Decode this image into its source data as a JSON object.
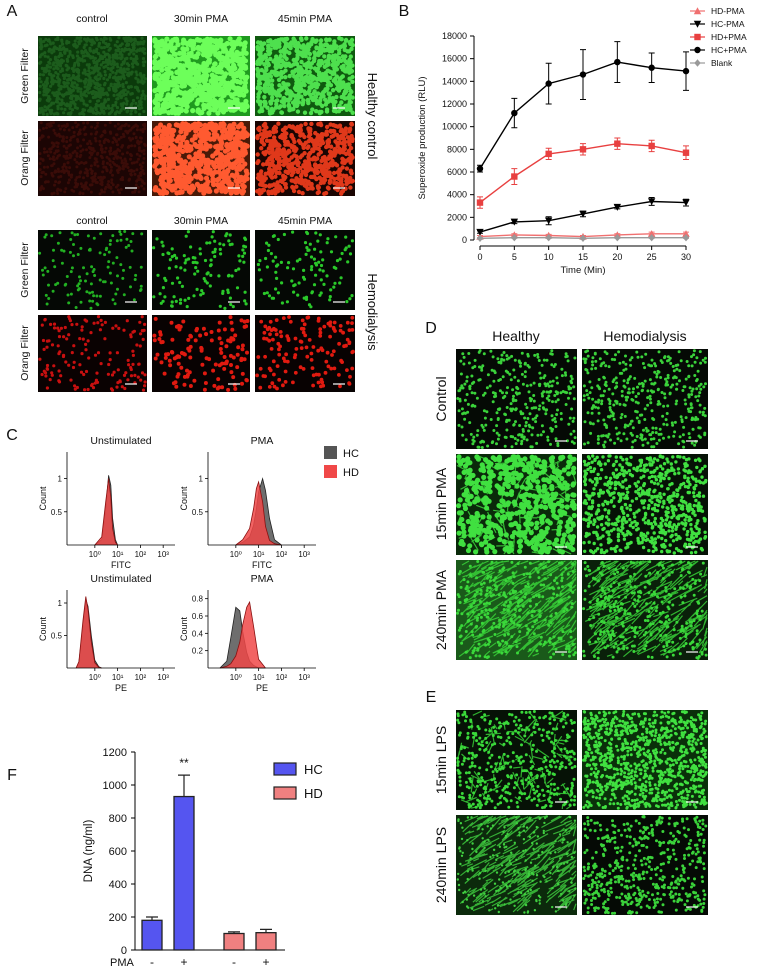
{
  "panel_A": {
    "label": "A",
    "healthy": {
      "columns": [
        "control",
        "30min PMA",
        "45min PMA"
      ],
      "rows": [
        "Green Filter",
        "Orang Filter"
      ],
      "group": "Healthy control"
    },
    "hemodialysis": {
      "columns": [
        "control",
        "30min PMA",
        "45min PMA"
      ],
      "rows": [
        "Green Filter",
        "Orang Filter"
      ],
      "group": "Hemodialysis"
    }
  },
  "panel_D": {
    "label": "D",
    "columns": [
      "Healthy",
      "Hemodialysis"
    ],
    "rows": [
      "Control",
      "15min PMA",
      "240min PMA"
    ]
  },
  "panel_E": {
    "label": "E",
    "rows": [
      "15min LPS",
      "240min LPS"
    ]
  },
  "chart_data": [
    {
      "type": "line",
      "panel": "B",
      "ylabel": "Superoxide production (RLU)",
      "xlabel": "Time (Min)",
      "x": [
        0,
        5,
        10,
        15,
        20,
        25,
        30
      ],
      "xlim": [
        0,
        30
      ],
      "xticks": [
        0,
        5,
        10,
        15,
        20,
        25,
        30
      ],
      "ylim": [
        0,
        18000
      ],
      "yticks": [
        0,
        2000,
        4000,
        6000,
        8000,
        10000,
        12000,
        14000,
        16000,
        18000
      ],
      "series": [
        {
          "name": "HD-PMA",
          "color": "#f07070",
          "marker": "triangle-up",
          "values": [
            300,
            450,
            400,
            300,
            450,
            550,
            550
          ],
          "errors": [
            100,
            100,
            100,
            100,
            100,
            150,
            150
          ]
        },
        {
          "name": "HC-PMA",
          "color": "#000000",
          "marker": "triangle-down",
          "values": [
            700,
            1600,
            1700,
            2300,
            2900,
            3400,
            3300
          ],
          "errors": [
            100,
            150,
            350,
            250,
            150,
            350,
            300
          ]
        },
        {
          "name": "HD+PMA",
          "color": "#e84040",
          "marker": "square",
          "values": [
            3300,
            5600,
            7600,
            8000,
            8500,
            8300,
            7700
          ],
          "errors": [
            500,
            700,
            500,
            500,
            500,
            500,
            600
          ]
        },
        {
          "name": "HC+PMA",
          "color": "#000000",
          "marker": "circle",
          "values": [
            6300,
            11200,
            13800,
            14600,
            15700,
            15200,
            14900
          ],
          "errors": [
            300,
            1300,
            1800,
            2200,
            1800,
            1300,
            1700
          ]
        },
        {
          "name": "Blank",
          "color": "#999999",
          "marker": "diamond",
          "values": [
            150,
            200,
            200,
            150,
            200,
            200,
            200
          ],
          "errors": [
            50,
            50,
            50,
            50,
            50,
            50,
            50
          ]
        }
      ]
    },
    {
      "type": "density",
      "panel": "C",
      "ylabel": "Count",
      "xscale": "log",
      "xlim": [
        0.06,
        3300
      ],
      "xticks": [
        {
          "value": 1,
          "label": "10⁰"
        },
        {
          "value": 10,
          "label": "10¹"
        },
        {
          "value": 100,
          "label": "10²"
        },
        {
          "value": 1000,
          "label": "10³"
        }
      ],
      "series": [
        {
          "name": "HC",
          "color": "#555555"
        },
        {
          "name": "HD",
          "color": "#f04848"
        }
      ],
      "plots": [
        {
          "title": "Unstimulated",
          "xlabel": "FITC",
          "ylim": [
            0,
            1.4
          ],
          "yticks": [
            0.5,
            1
          ],
          "x": [
            1,
            2,
            3,
            4,
            5,
            6,
            8,
            10
          ],
          "values": [
            [
              0,
              0.08,
              0.55,
              1.05,
              0.9,
              0.4,
              0.08,
              0
            ],
            [
              0,
              0.12,
              0.65,
              1.0,
              0.72,
              0.25,
              0.04,
              0
            ]
          ]
        },
        {
          "title": "PMA",
          "xlabel": "FITC",
          "ylim": [
            0,
            1.4
          ],
          "yticks": [
            0.5,
            1
          ],
          "x": [
            1,
            2,
            4,
            6,
            8,
            10,
            15,
            20,
            30,
            50,
            100
          ],
          "values": [
            [
              0,
              0.04,
              0.12,
              0.3,
              0.55,
              0.8,
              1.0,
              0.82,
              0.4,
              0.08,
              0
            ],
            [
              0,
              0.08,
              0.25,
              0.55,
              0.85,
              0.95,
              0.65,
              0.28,
              0.07,
              0.02,
              0
            ]
          ]
        },
        {
          "title": "Unstimulated",
          "xlabel": "PE",
          "ylim": [
            0,
            1.2
          ],
          "yticks": [
            0.5,
            1
          ],
          "x": [
            0.15,
            0.2,
            0.3,
            0.4,
            0.5,
            0.7,
            1,
            1.5,
            2
          ],
          "values": [
            [
              0,
              0.08,
              0.65,
              1.05,
              0.95,
              0.5,
              0.12,
              0.02,
              0
            ],
            [
              0,
              0.1,
              0.72,
              1.1,
              0.9,
              0.4,
              0.08,
              0.01,
              0
            ]
          ]
        },
        {
          "title": "PMA",
          "xlabel": "PE",
          "ylim": [
            0,
            0.9
          ],
          "yticks": [
            0.2,
            0.4,
            0.6,
            0.8
          ],
          "x": [
            0.2,
            0.4,
            0.6,
            1,
            1.5,
            2,
            3,
            4,
            6,
            10,
            20
          ],
          "values": [
            [
              0,
              0.08,
              0.35,
              0.7,
              0.66,
              0.42,
              0.18,
              0.08,
              0.03,
              0,
              0
            ],
            [
              0,
              0.02,
              0.05,
              0.14,
              0.3,
              0.5,
              0.7,
              0.76,
              0.48,
              0.1,
              0
            ]
          ]
        }
      ]
    },
    {
      "type": "bar",
      "panel": "F",
      "ylabel": "DNA (ng/ml)",
      "xlabel": "PMA",
      "categories": [
        "-",
        "+",
        "-",
        "+"
      ],
      "ylim": [
        0,
        1200
      ],
      "yticks": [
        0,
        200,
        400,
        600,
        800,
        1000,
        1200
      ],
      "series": [
        {
          "name": "HC",
          "color": "#5555f0",
          "values": [
            180,
            930,
            null,
            null
          ],
          "errors": [
            20,
            130,
            null,
            null
          ],
          "value_annotations": [
            null,
            "**",
            null,
            null
          ]
        },
        {
          "name": "HD",
          "color": "#f08080",
          "values": [
            null,
            null,
            100,
            105
          ],
          "errors": [
            null,
            null,
            10,
            20
          ],
          "value_annotations": [
            null,
            null,
            null,
            null
          ]
        }
      ]
    }
  ]
}
